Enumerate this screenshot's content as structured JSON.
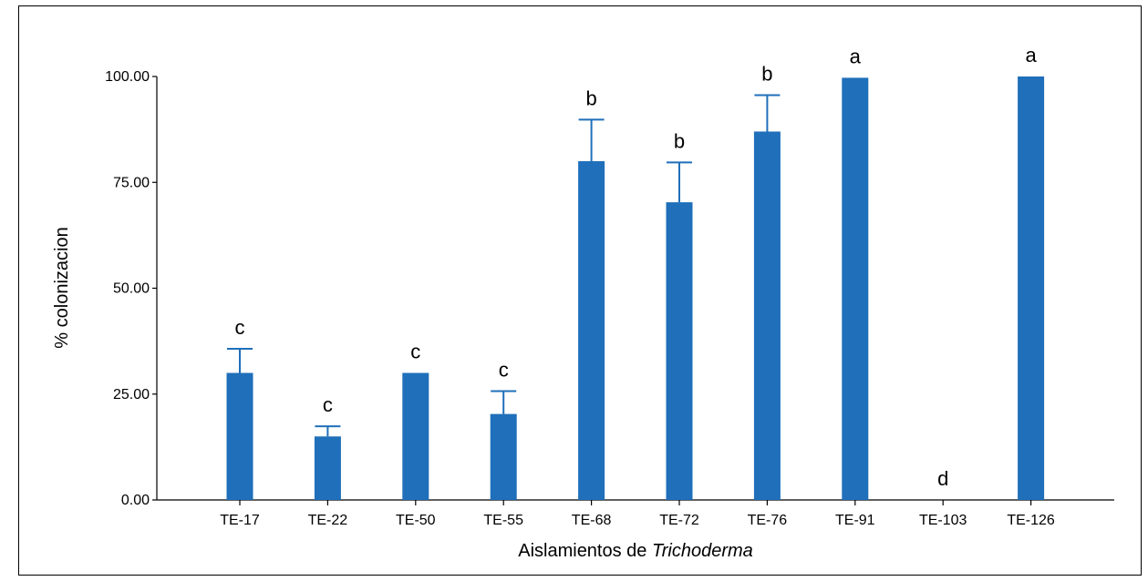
{
  "chart_data": {
    "type": "bar",
    "categories": [
      "TE-17",
      "TE-22",
      "TE-50",
      "TE-55",
      "TE-68",
      "TE-72",
      "TE-76",
      "TE-91",
      "TE-103",
      "TE-126"
    ],
    "values": [
      30.0,
      15.0,
      30.0,
      20.3,
      80.0,
      70.3,
      87.0,
      99.7,
      0.0,
      100.0
    ],
    "error_upper": [
      5.7,
      2.4,
      0.0,
      5.4,
      9.8,
      9.4,
      8.6,
      0.0,
      0.0,
      0.0
    ],
    "significance_letters": [
      "c",
      "c",
      "c",
      "c",
      "b",
      "b",
      "b",
      "a",
      "d",
      "a"
    ],
    "xlabel_prefix": "Aislamientos de ",
    "xlabel_italic": "Trichoderma",
    "ylabel": "% colonizacion",
    "y_ticks": [
      0,
      25,
      50,
      75,
      100
    ],
    "y_tick_labels": [
      "0.00",
      "25.00",
      "50.00",
      "75.00",
      "100.00"
    ],
    "ylim": [
      0,
      100
    ],
    "bar_color": "#1f6fba",
    "grid": false,
    "legend": "none"
  }
}
